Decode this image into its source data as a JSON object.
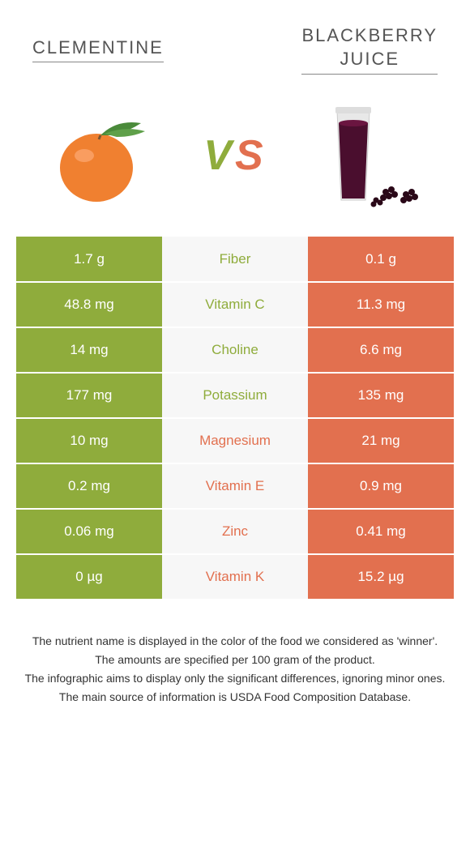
{
  "titles": {
    "left": "CLEMENTINE",
    "right_line1": "BLACKBERRY",
    "right_line2": "JUICE"
  },
  "vs": {
    "v": "V",
    "s": "S"
  },
  "colors": {
    "green": "#8fac3c",
    "orange": "#e2704f",
    "text_gray": "#555555",
    "row_alt": "#f7f7f7"
  },
  "rows": [
    {
      "left": "1.7 g",
      "mid": "Fiber",
      "right": "0.1 g",
      "winner": "left"
    },
    {
      "left": "48.8 mg",
      "mid": "Vitamin C",
      "right": "11.3 mg",
      "winner": "left"
    },
    {
      "left": "14 mg",
      "mid": "Choline",
      "right": "6.6 mg",
      "winner": "left"
    },
    {
      "left": "177 mg",
      "mid": "Potassium",
      "right": "135 mg",
      "winner": "left"
    },
    {
      "left": "10 mg",
      "mid": "Magnesium",
      "right": "21 mg",
      "winner": "right"
    },
    {
      "left": "0.2 mg",
      "mid": "Vitamin E",
      "right": "0.9 mg",
      "winner": "right"
    },
    {
      "left": "0.06 mg",
      "mid": "Zinc",
      "right": "0.41 mg",
      "winner": "right"
    },
    {
      "left": "0 µg",
      "mid": "Vitamin K",
      "right": "15.2 µg",
      "winner": "right"
    }
  ],
  "footnotes": [
    "The nutrient name is displayed in the color of the food we considered as 'winner'.",
    "The amounts are specified per 100 gram of the product.",
    "The infographic aims to display only the significant differences, ignoring minor ones.",
    "The main source of information is USDA Food Composition Database."
  ]
}
